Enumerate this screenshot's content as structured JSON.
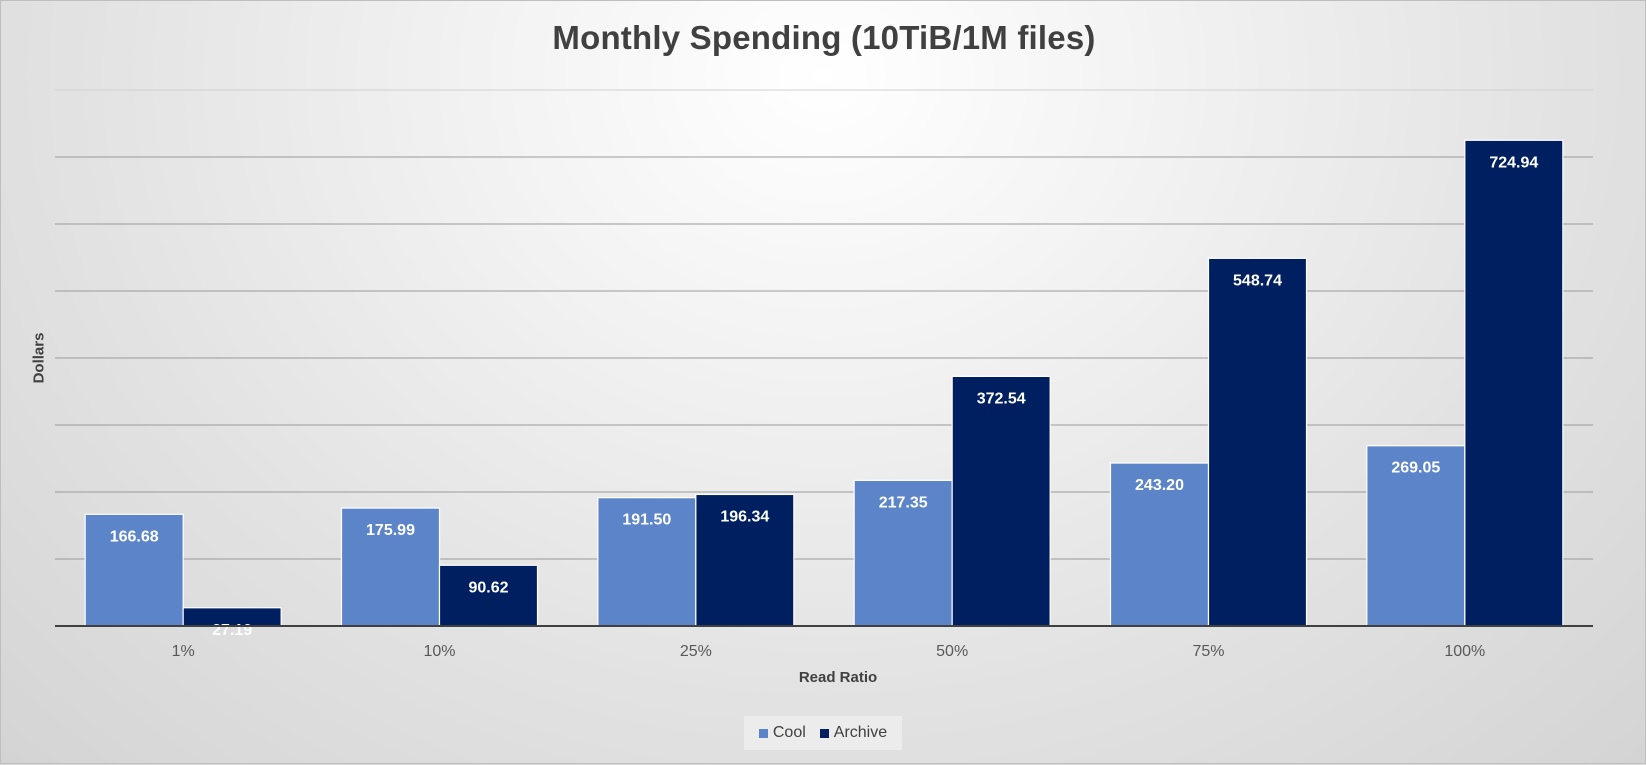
{
  "chart_data": {
    "type": "bar",
    "title": "Monthly Spending (10TiB/1M files)",
    "xlabel": "Read Ratio",
    "ylabel": "Dollars",
    "categories": [
      "1%",
      "10%",
      "25%",
      "50%",
      "75%",
      "100%"
    ],
    "series": [
      {
        "name": "Cool",
        "color": "#5b84c9",
        "values": [
          166.68,
          175.99,
          191.5,
          217.35,
          243.2,
          269.05
        ],
        "labels": [
          "166.68",
          "175.99",
          "191.50",
          "217.35",
          "243.20",
          "269.05"
        ]
      },
      {
        "name": "Archive",
        "color": "#001f60",
        "values": [
          27.19,
          90.62,
          196.34,
          372.54,
          548.74,
          724.94
        ],
        "labels": [
          "27.19",
          "90.62",
          "196.34",
          "372.54",
          "548.74",
          "724.94"
        ]
      }
    ],
    "ylim": [
      0,
      800
    ],
    "y_gridline_step": 100,
    "y_tick_labels_shown": false,
    "grid": true,
    "legend_position": "bottom",
    "data_labels": "inside-end"
  }
}
